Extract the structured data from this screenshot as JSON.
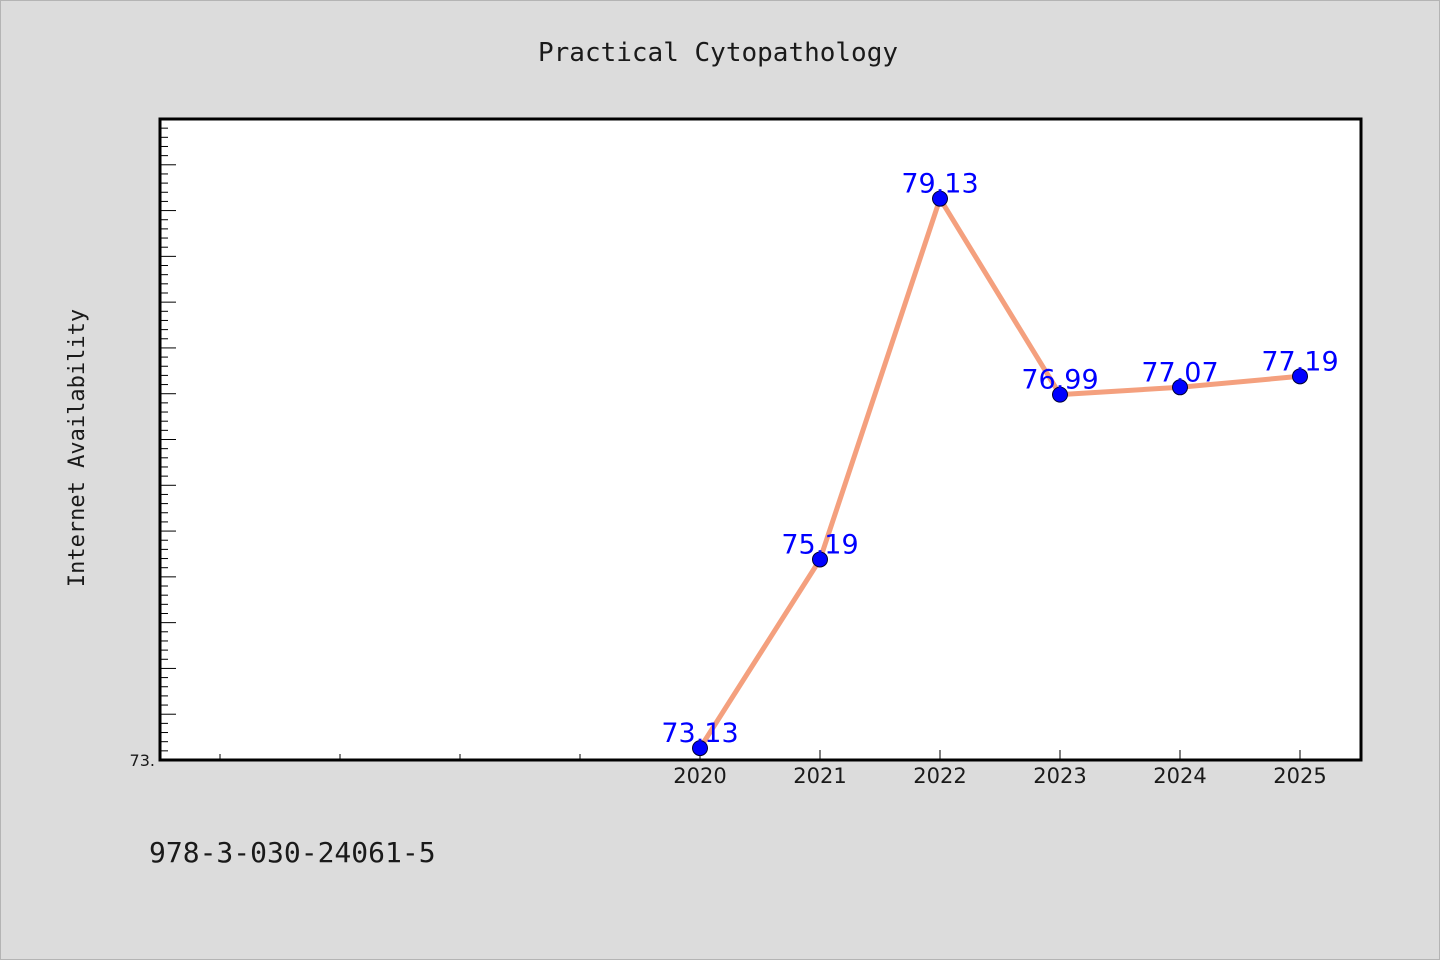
{
  "chart_data": {
    "type": "line",
    "title": "Practical Cytopathology",
    "xlabel": "",
    "ylabel": "Internet Availability",
    "categories": [
      "2020",
      "2021",
      "2022",
      "2023",
      "2024",
      "2025"
    ],
    "series": [
      {
        "values": [
          73.13,
          75.19,
          79.13,
          76.99,
          77.07,
          77.19
        ]
      }
    ],
    "data_labels": [
      "73.13",
      "75.19",
      "79.13",
      "76.99",
      "77.07",
      "77.19"
    ],
    "y_tick_labels": [
      "73."
    ],
    "ylim": [
      73.0,
      80.0
    ],
    "grid": false,
    "legend": "none",
    "line_color": "#f4a07e",
    "marker_color": "#0000ff",
    "label_color": "#0000ff"
  },
  "footer": {
    "text": "978-3-030-24061-5"
  }
}
